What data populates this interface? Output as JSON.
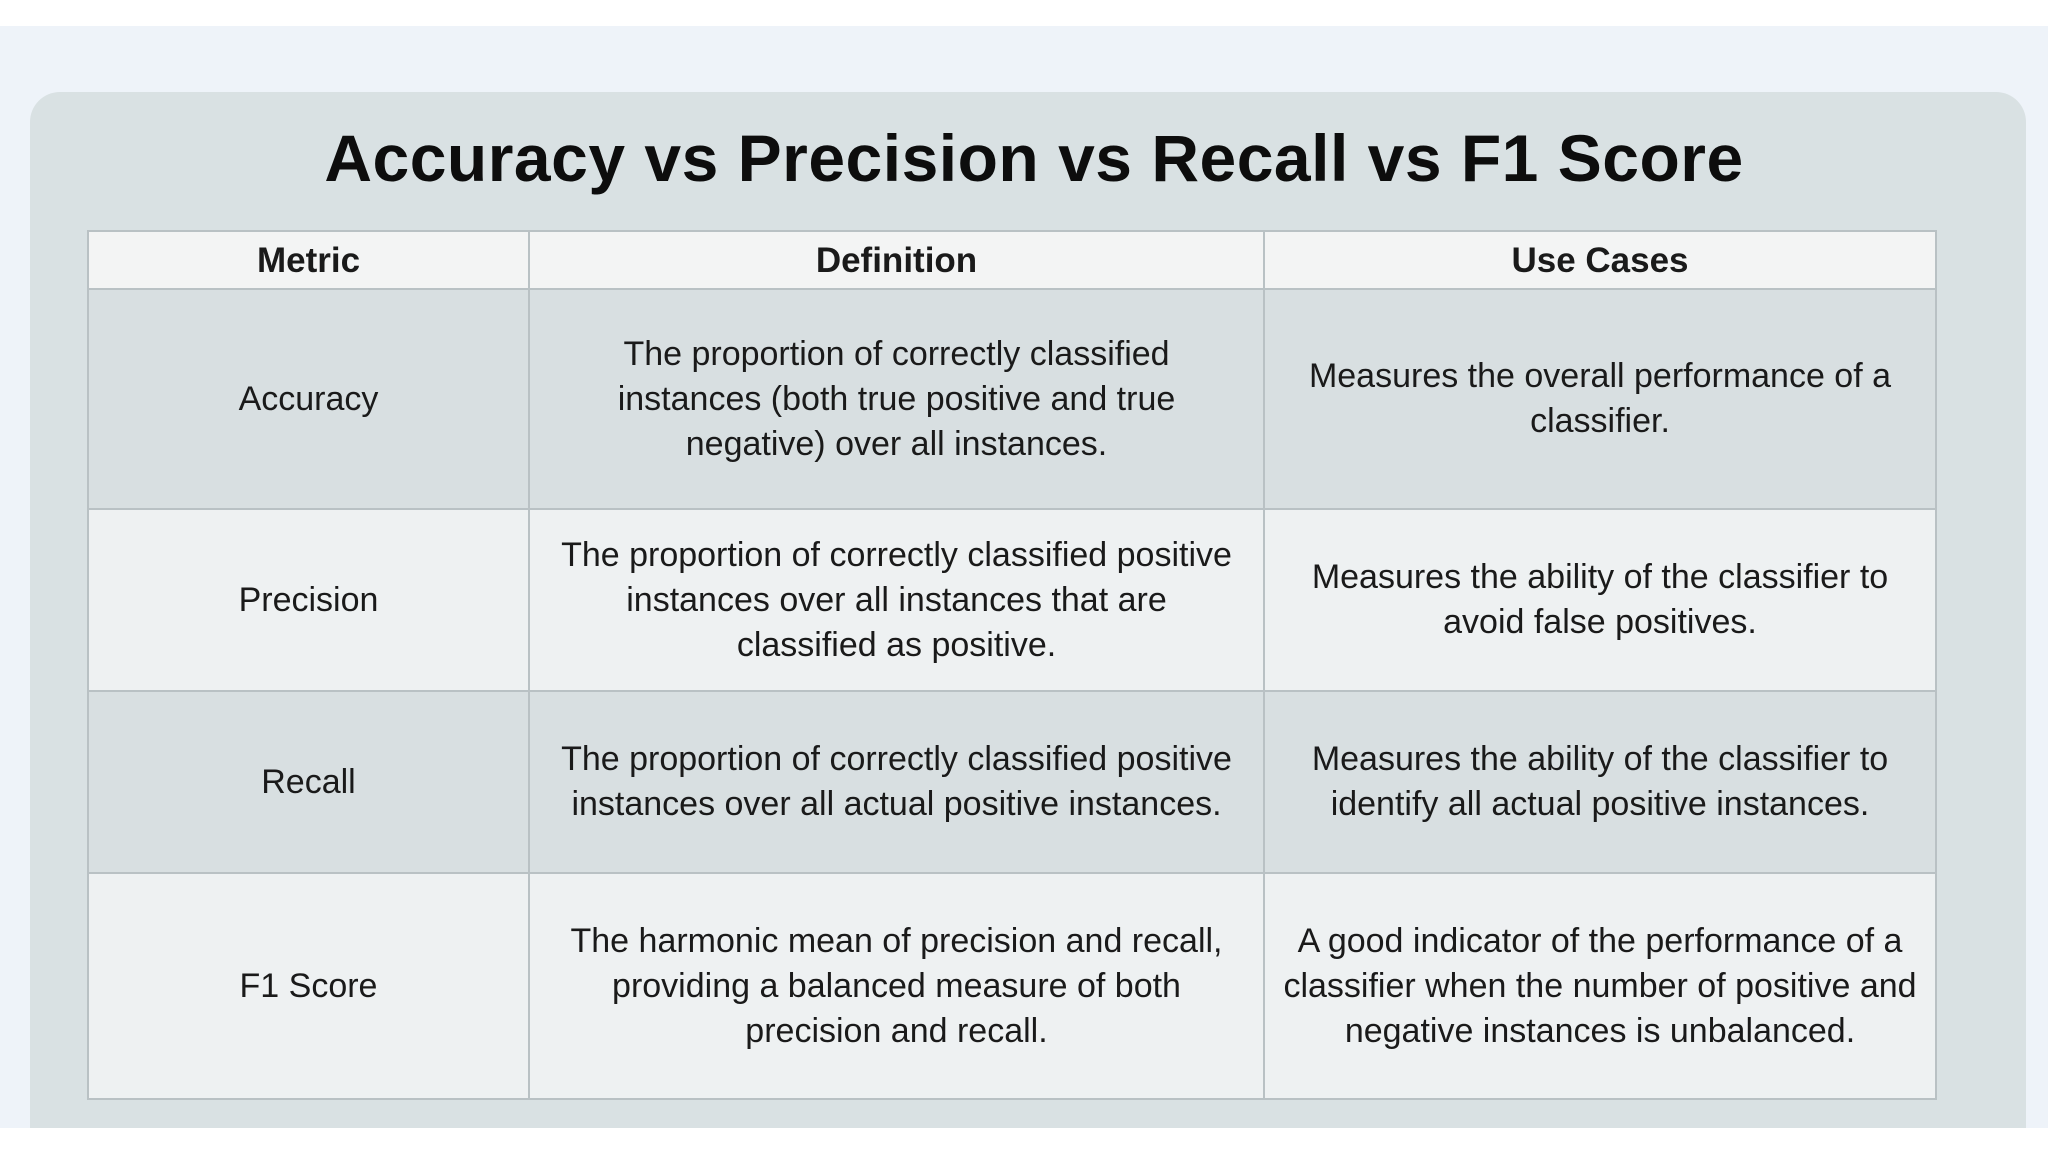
{
  "title": "Accuracy vs Precision vs Recall vs F1 Score",
  "table": {
    "headers": [
      "Metric",
      "Definition",
      "Use Cases"
    ],
    "rows": [
      {
        "metric": "Accuracy",
        "definition": "The proportion of correctly classified instances (both true positive and true negative) over all instances.",
        "use_case": "Measures the overall performance of a classifier."
      },
      {
        "metric": "Precision",
        "definition": "The proportion of correctly classified positive instances over all instances that are classified as positive.",
        "use_case": "Measures the ability of the classifier to avoid false positives."
      },
      {
        "metric": "Recall",
        "definition": "The proportion of correctly classified positive instances over all actual positive instances.",
        "use_case": "Measures the ability of the classifier to identify all actual positive instances."
      },
      {
        "metric": "F1 Score",
        "definition": "The harmonic mean of precision and recall, providing a balanced measure of both precision and recall.",
        "use_case": "A good indicator of the performance of a classifier when the number of positive and negative instances is unbalanced."
      }
    ]
  },
  "colors": {
    "page_background": "#eef3f9",
    "panel_background": "#d9e1e3",
    "header_background": "#f3f4f4",
    "shaded_row": "#d8dfe1",
    "light_row": "#eef1f2",
    "border": "#b9c1c4"
  }
}
